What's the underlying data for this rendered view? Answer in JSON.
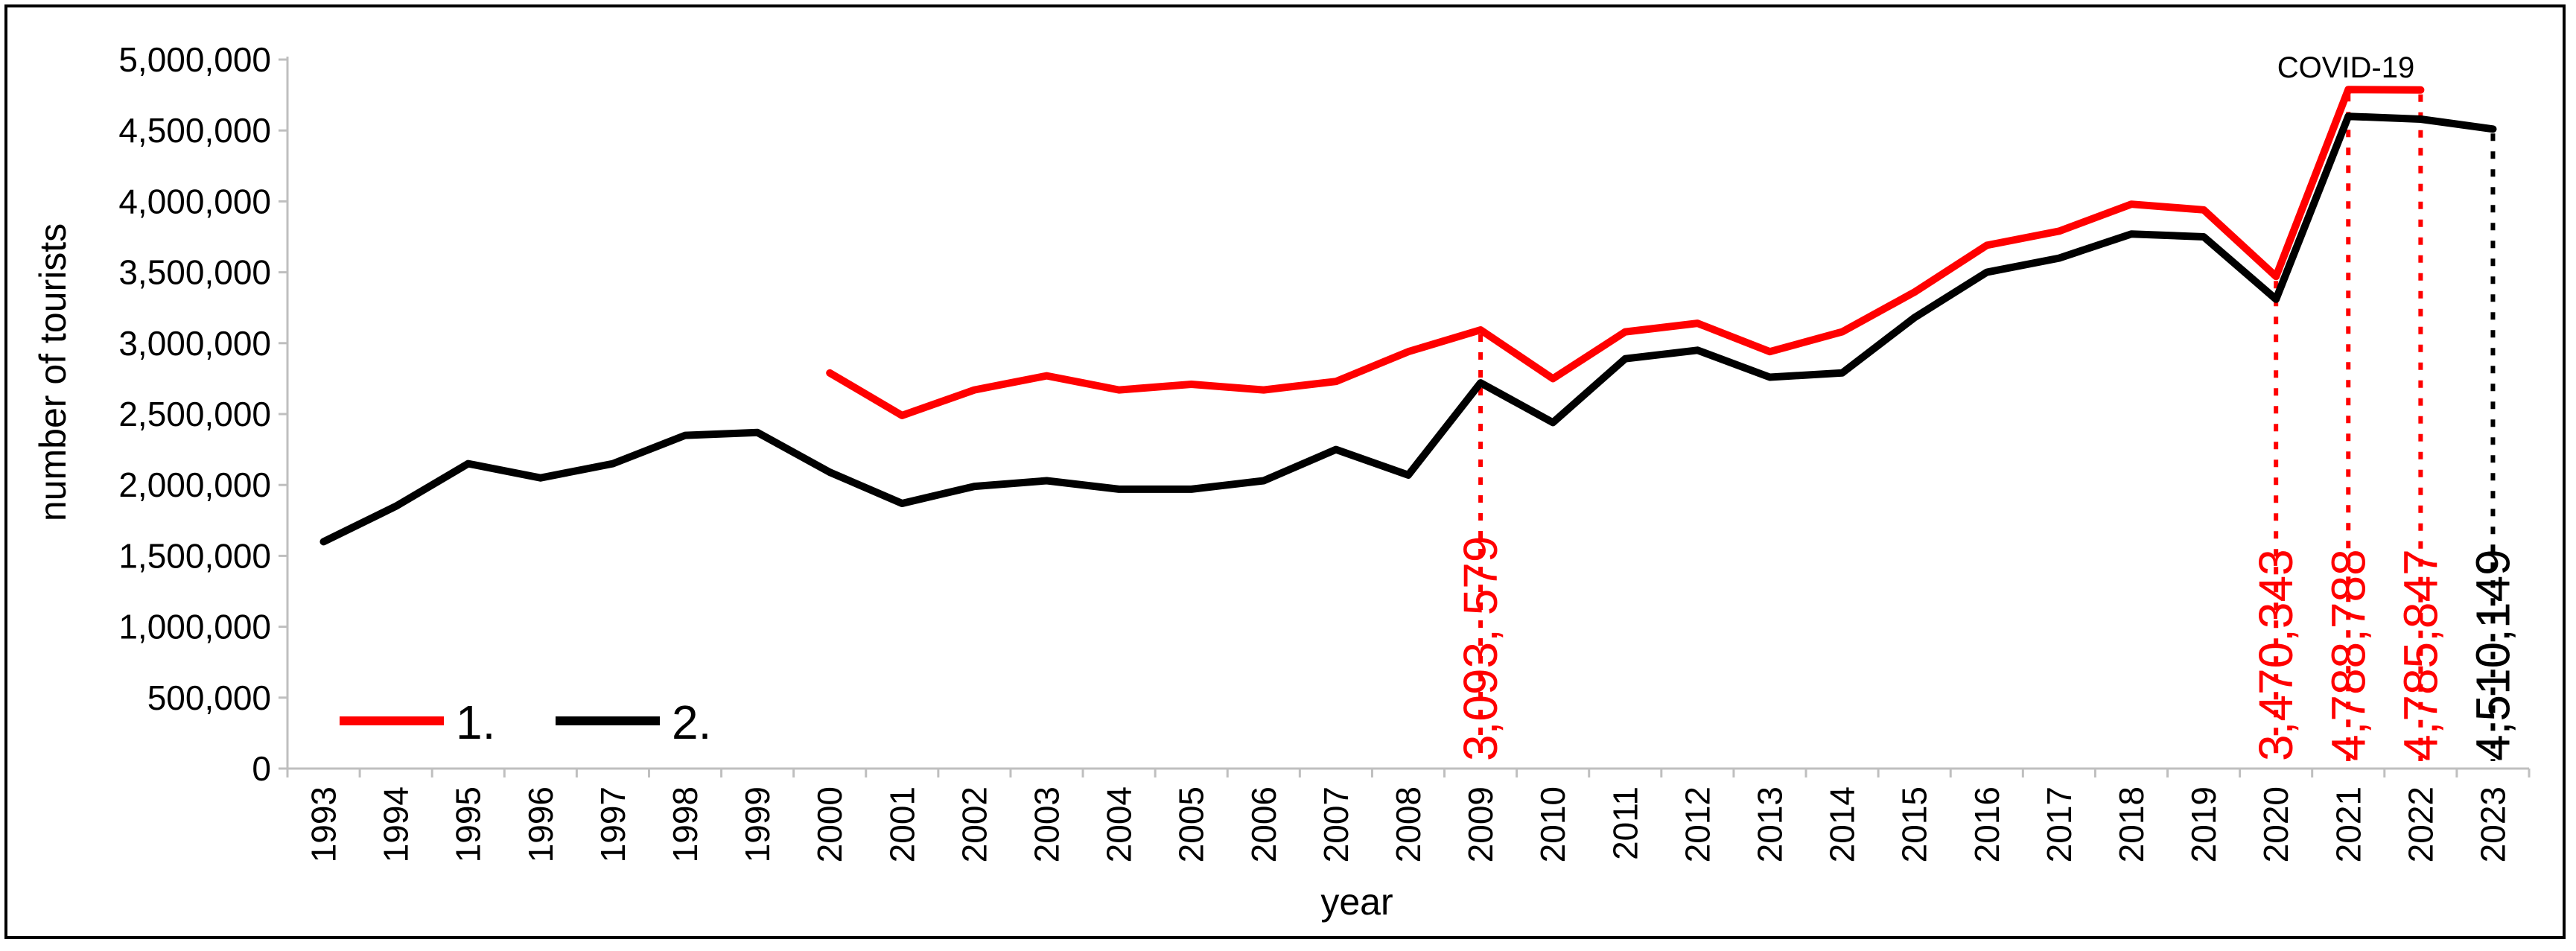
{
  "chart_data": {
    "type": "line",
    "ylabel": "number of tourists",
    "xlabel": "year",
    "ylim": [
      0,
      5000000
    ],
    "y_ticks": [
      0,
      500000,
      1000000,
      1500000,
      2000000,
      2500000,
      3000000,
      3500000,
      4000000,
      4500000,
      5000000
    ],
    "y_tick_labels": [
      "0",
      "500,000",
      "1,000,000",
      "1,500,000",
      "2,000,000",
      "2,500,000",
      "3,000,000",
      "3,500,000",
      "4,000,000",
      "4,500,000",
      "5,000,000"
    ],
    "categories": [
      "1993",
      "1994",
      "1995",
      "1996",
      "1997",
      "1998",
      "1999",
      "2000",
      "2001",
      "2002",
      "2003",
      "2004",
      "2005",
      "2006",
      "2007",
      "2008",
      "2009",
      "2010",
      "2011",
      "2012",
      "2013",
      "2014",
      "2015",
      "2016",
      "2017",
      "2018",
      "2019",
      "2020",
      "2021",
      "2022",
      "2023"
    ],
    "grid": false,
    "legend_position": "bottom-left",
    "series": [
      {
        "name": "1.",
        "color": "#ff0000",
        "values": [
          null,
          null,
          null,
          null,
          null,
          null,
          null,
          2790000,
          2490000,
          2670000,
          2770000,
          2670000,
          2710000,
          2670000,
          2730000,
          2940000,
          3093579,
          2750000,
          3080000,
          3140000,
          2940000,
          3080000,
          3360000,
          3690000,
          3790000,
          3980000,
          3940000,
          3470343,
          4788788,
          4785847,
          null
        ]
      },
      {
        "name": "2.",
        "color": "#000000",
        "values": [
          1600000,
          1850000,
          2150000,
          2050000,
          2150000,
          2350000,
          2370000,
          2090000,
          1870000,
          1990000,
          2030000,
          1970000,
          1970000,
          2030000,
          2250000,
          2070000,
          2720000,
          2440000,
          2890000,
          2950000,
          2760000,
          2790000,
          3180000,
          3500000,
          3600000,
          3770000,
          3750000,
          3310000,
          4600000,
          4580000,
          4510149
        ]
      }
    ],
    "annotations": [
      {
        "category": "2009",
        "value": 3093579,
        "label": "3,093, 579",
        "color": "#ff0000",
        "series": "1."
      },
      {
        "category": "2020",
        "value": 3470343,
        "label": "3,470,343",
        "color": "#ff0000",
        "series": "1."
      },
      {
        "category": "2021",
        "value": 4788788,
        "label": "4,788,788",
        "color": "#ff0000",
        "series": "1."
      },
      {
        "category": "2022",
        "value": 4785847,
        "label": "4,785,847",
        "color": "#ff0000",
        "series": "1."
      },
      {
        "category": "2023",
        "value": 4510149,
        "label": "4,510,149",
        "color": "#000000",
        "series": "2."
      }
    ],
    "note": "COVID-19"
  }
}
